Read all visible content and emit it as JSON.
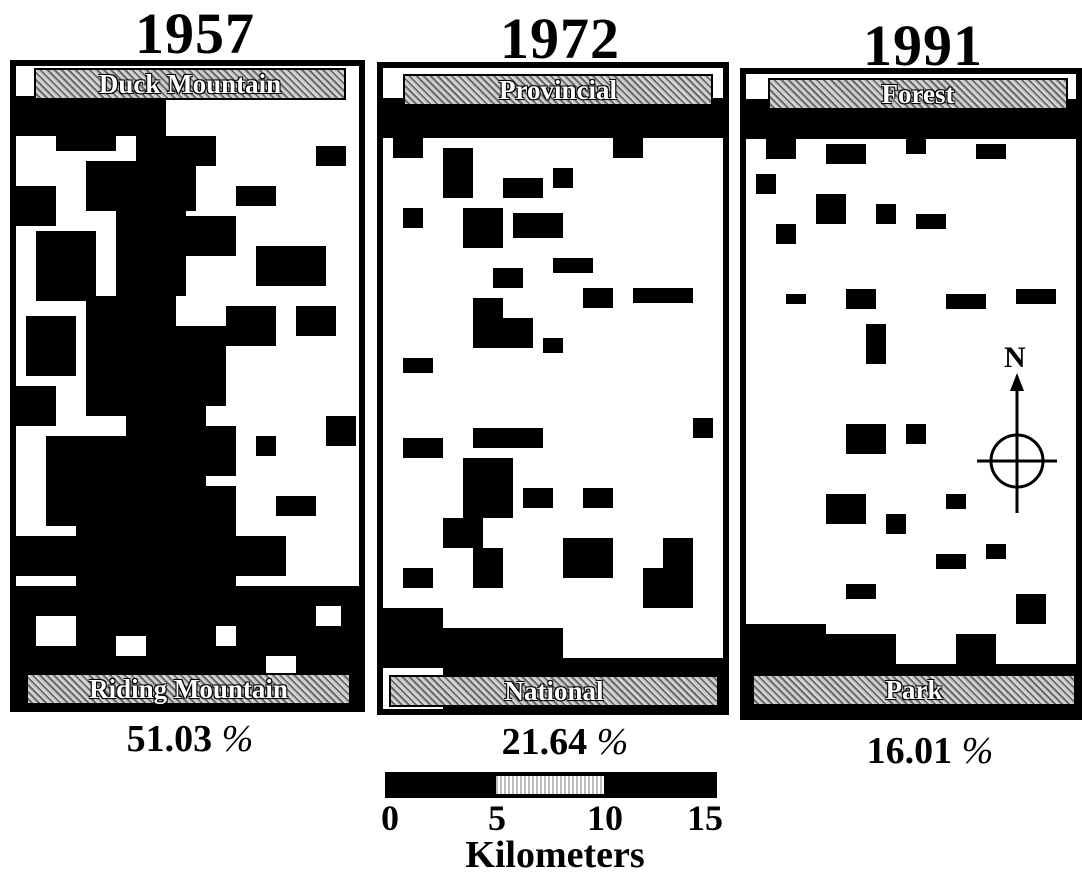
{
  "panels": [
    {
      "year": "1957",
      "top_label": "Duck Mountain",
      "bottom_label": "Riding Mountain",
      "percent": "51.03",
      "percent_sign": "%"
    },
    {
      "year": "1972",
      "top_label": "Provincial",
      "bottom_label": "National",
      "percent": "21.64",
      "percent_sign": "%"
    },
    {
      "year": "1991",
      "top_label": "Forest",
      "bottom_label": "Park",
      "percent": "16.01",
      "percent_sign": "%"
    }
  ],
  "north_arrow": {
    "label": "N"
  },
  "scale": {
    "ticks": [
      "0",
      "5",
      "10",
      "15"
    ],
    "unit": "Kilometers"
  }
}
